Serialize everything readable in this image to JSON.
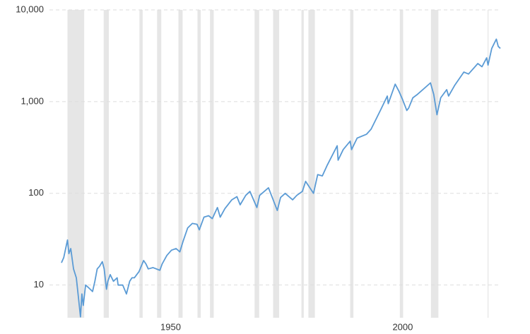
{
  "chart_data": {
    "type": "line",
    "log_y": true,
    "grid": true,
    "color": "#5b9bd5",
    "band_color": "#e6e6e6",
    "xlim": [
      1928,
      2023
    ],
    "xticks": [
      1950,
      2000
    ],
    "ylim": [
      4.4,
      10000
    ],
    "yticks": [
      {
        "value": 10000,
        "label": "10,000"
      },
      {
        "value": 1000,
        "label": "1,000"
      },
      100,
      10
    ],
    "recessions": [
      [
        1929.6,
        1933.2
      ],
      [
        1937.4,
        1938.5
      ],
      [
        1945.1,
        1945.8
      ],
      [
        1948.9,
        1949.8
      ],
      [
        1953.5,
        1954.4
      ],
      [
        1957.6,
        1958.3
      ],
      [
        1960.3,
        1961.1
      ],
      [
        1969.9,
        1970.9
      ],
      [
        1973.9,
        1975.2
      ],
      [
        1980.0,
        1980.5
      ],
      [
        1981.5,
        1982.9
      ],
      [
        1990.5,
        1991.2
      ],
      [
        2001.2,
        2001.9
      ],
      [
        2007.9,
        2009.5
      ],
      [
        2020.1,
        2020.3
      ]
    ],
    "x": [
      1928.3,
      1928.8,
      1929.6,
      1929.9,
      1930.3,
      1930.9,
      1931.5,
      1932.0,
      1932.4,
      1932.7,
      1933.0,
      1933.5,
      1934,
      1934.5,
      1935,
      1935.5,
      1936,
      1936.5,
      1937.1,
      1937.5,
      1938.0,
      1938.3,
      1938.8,
      1939.5,
      1940.3,
      1940.5,
      1941,
      1941.5,
      1942.3,
      1943,
      1943.5,
      1944,
      1945,
      1946,
      1946.5,
      1947,
      1948,
      1949.5,
      1950,
      1951,
      1952,
      1953,
      1953.8,
      1954.5,
      1955.5,
      1956.5,
      1957.5,
      1958,
      1959,
      1960,
      1960.8,
      1961.9,
      1962.5,
      1963.5,
      1965,
      1966.1,
      1966.8,
      1968,
      1968.9,
      1970.4,
      1971,
      1972.9,
      1974.8,
      1975.5,
      1976.5,
      1978.1,
      1979,
      1980.2,
      1980.9,
      1982.6,
      1983.5,
      1984.5,
      1985.5,
      1987.7,
      1987.9,
      1989,
      1990.5,
      1990.8,
      1992,
      1994,
      1995,
      1997,
      1998.5,
      1998.7,
      2000.2,
      2001,
      2001.8,
      2002.7,
      2003.1,
      2004,
      2005,
      2007.8,
      2008.5,
      2009.2,
      2010,
      2011.3,
      2011.7,
      2013,
      2015,
      2016,
      2018,
      2018.9,
      2019.9,
      2020.2,
      2021,
      2021.99,
      2022.4,
      2022.85
    ],
    "values": [
      17.5,
      20,
      31,
      22,
      25,
      15,
      12,
      7,
      4.5,
      8,
      6,
      10,
      9.5,
      9,
      8.5,
      11,
      15,
      16,
      18,
      15,
      9,
      11,
      13,
      11,
      12,
      10,
      10,
      10,
      8,
      11,
      12,
      12,
      14,
      18.5,
      17,
      15,
      15.5,
      14.5,
      17,
      21,
      24,
      25,
      23,
      30,
      42,
      47,
      46,
      40,
      55,
      57,
      53,
      70,
      55,
      68,
      85,
      92,
      75,
      95,
      105,
      70,
      95,
      115,
      65,
      90,
      100,
      85,
      95,
      105,
      135,
      100,
      160,
      155,
      200,
      330,
      230,
      300,
      370,
      300,
      400,
      440,
      500,
      800,
      1150,
      950,
      1550,
      1300,
      1050,
      800,
      850,
      1100,
      1200,
      1600,
      1200,
      720,
      1100,
      1350,
      1150,
      1500,
      2100,
      2000,
      2600,
      2400,
      3000,
      2500,
      3800,
      4800,
      4000,
      3800
    ]
  }
}
